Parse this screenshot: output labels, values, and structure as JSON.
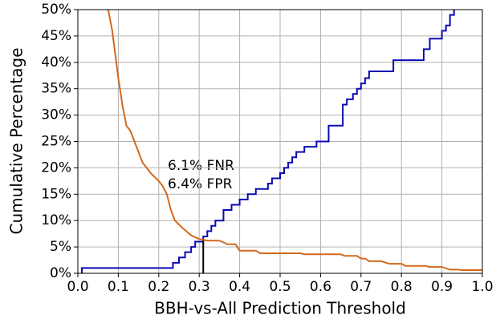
{
  "chart_data": {
    "type": "line",
    "xlabel": "BBH-vs-All Prediction Threshold",
    "ylabel": "Cumulative Percentage",
    "annotations": [
      "6.1% FNR",
      "6.4% FPR"
    ],
    "vlines": [
      {
        "x": 0.31,
        "y": [
          0,
          6.2
        ],
        "color": "#000000"
      }
    ],
    "xlim": [
      0,
      1
    ],
    "ylim": [
      0,
      50
    ],
    "xticks": [
      {
        "value": 0,
        "label": "0.0"
      },
      0.1,
      0.2,
      0.3,
      0.4,
      0.5,
      0.6,
      0.7,
      0.8,
      0.9,
      {
        "value": 1,
        "label": "1.0"
      }
    ],
    "yticks": [
      {
        "value": 0,
        "label": "0%"
      },
      {
        "value": 5,
        "label": "5%"
      },
      {
        "value": 10,
        "label": "10%"
      },
      {
        "value": 15,
        "label": "15%"
      },
      {
        "value": 20,
        "label": "20%"
      },
      {
        "value": 25,
        "label": "25%"
      },
      {
        "value": 30,
        "label": "30%"
      },
      {
        "value": 35,
        "label": "35%"
      },
      {
        "value": 40,
        "label": "40%"
      },
      {
        "value": 45,
        "label": "45%"
      },
      {
        "value": 50,
        "label": "50%"
      }
    ],
    "grid": true,
    "series": [
      {
        "color": "#0a0ab4",
        "x": [
          0.01,
          0.01,
          0.235,
          0.235,
          0.25,
          0.25,
          0.265,
          0.265,
          0.28,
          0.28,
          0.29,
          0.29,
          0.31,
          0.31,
          0.32,
          0.32,
          0.33,
          0.33,
          0.34,
          0.34,
          0.36,
          0.36,
          0.38,
          0.38,
          0.4,
          0.4,
          0.42,
          0.42,
          0.44,
          0.44,
          0.47,
          0.47,
          0.48,
          0.48,
          0.5,
          0.5,
          0.51,
          0.51,
          0.52,
          0.52,
          0.53,
          0.53,
          0.54,
          0.54,
          0.56,
          0.56,
          0.59,
          0.59,
          0.62,
          0.62,
          0.655,
          0.655,
          0.665,
          0.665,
          0.68,
          0.68,
          0.69,
          0.69,
          0.7,
          0.7,
          0.71,
          0.71,
          0.72,
          0.72,
          0.78,
          0.78,
          0.855,
          0.855,
          0.87,
          0.87,
          0.9,
          0.9,
          0.91,
          0.91,
          0.92,
          0.92,
          0.93,
          0.93
        ],
        "values": [
          0,
          1,
          1,
          2,
          2,
          3,
          3,
          4,
          4,
          5,
          5,
          6,
          6,
          7,
          7,
          8,
          8,
          9,
          9,
          10,
          10,
          12,
          12,
          13,
          13,
          14,
          14,
          15,
          15,
          16,
          16,
          17,
          17,
          18,
          18,
          19,
          19,
          20,
          20,
          21,
          21,
          22,
          22,
          23,
          23,
          24,
          24,
          25,
          25,
          28,
          28,
          32,
          32,
          33,
          33,
          34,
          34,
          35,
          35,
          36,
          36,
          37,
          37,
          38.3,
          38.3,
          40.4,
          40.4,
          42.5,
          42.5,
          44.5,
          44.5,
          46,
          46,
          47,
          47,
          49,
          49,
          50
        ]
      },
      {
        "color": "#d2691e",
        "x": [
          0.075,
          0.085,
          0.09,
          0.1,
          0.11,
          0.12,
          0.13,
          0.14,
          0.15,
          0.16,
          0.17,
          0.18,
          0.2,
          0.21,
          0.22,
          0.23,
          0.24,
          0.26,
          0.28,
          0.3,
          0.32,
          0.35,
          0.37,
          0.39,
          0.4,
          0.44,
          0.45,
          0.55,
          0.56,
          0.65,
          0.66,
          0.69,
          0.7,
          0.71,
          0.72,
          0.75,
          0.77,
          0.8,
          0.81,
          0.86,
          0.87,
          0.9,
          0.92,
          0.94,
          0.95,
          1.0
        ],
        "values": [
          50,
          46,
          43,
          37,
          32,
          28,
          27,
          25,
          23,
          21,
          20,
          19,
          17.5,
          16.5,
          15,
          12,
          10,
          8.5,
          7.2,
          6.5,
          6.2,
          6.2,
          5.5,
          5.5,
          4.3,
          4.3,
          3.8,
          3.8,
          3.6,
          3.6,
          3.3,
          3.3,
          2.8,
          2.8,
          2.3,
          2.3,
          1.8,
          1.8,
          1.4,
          1.4,
          1.2,
          1.2,
          0.7,
          0.7,
          0.6,
          0.6
        ]
      }
    ]
  }
}
